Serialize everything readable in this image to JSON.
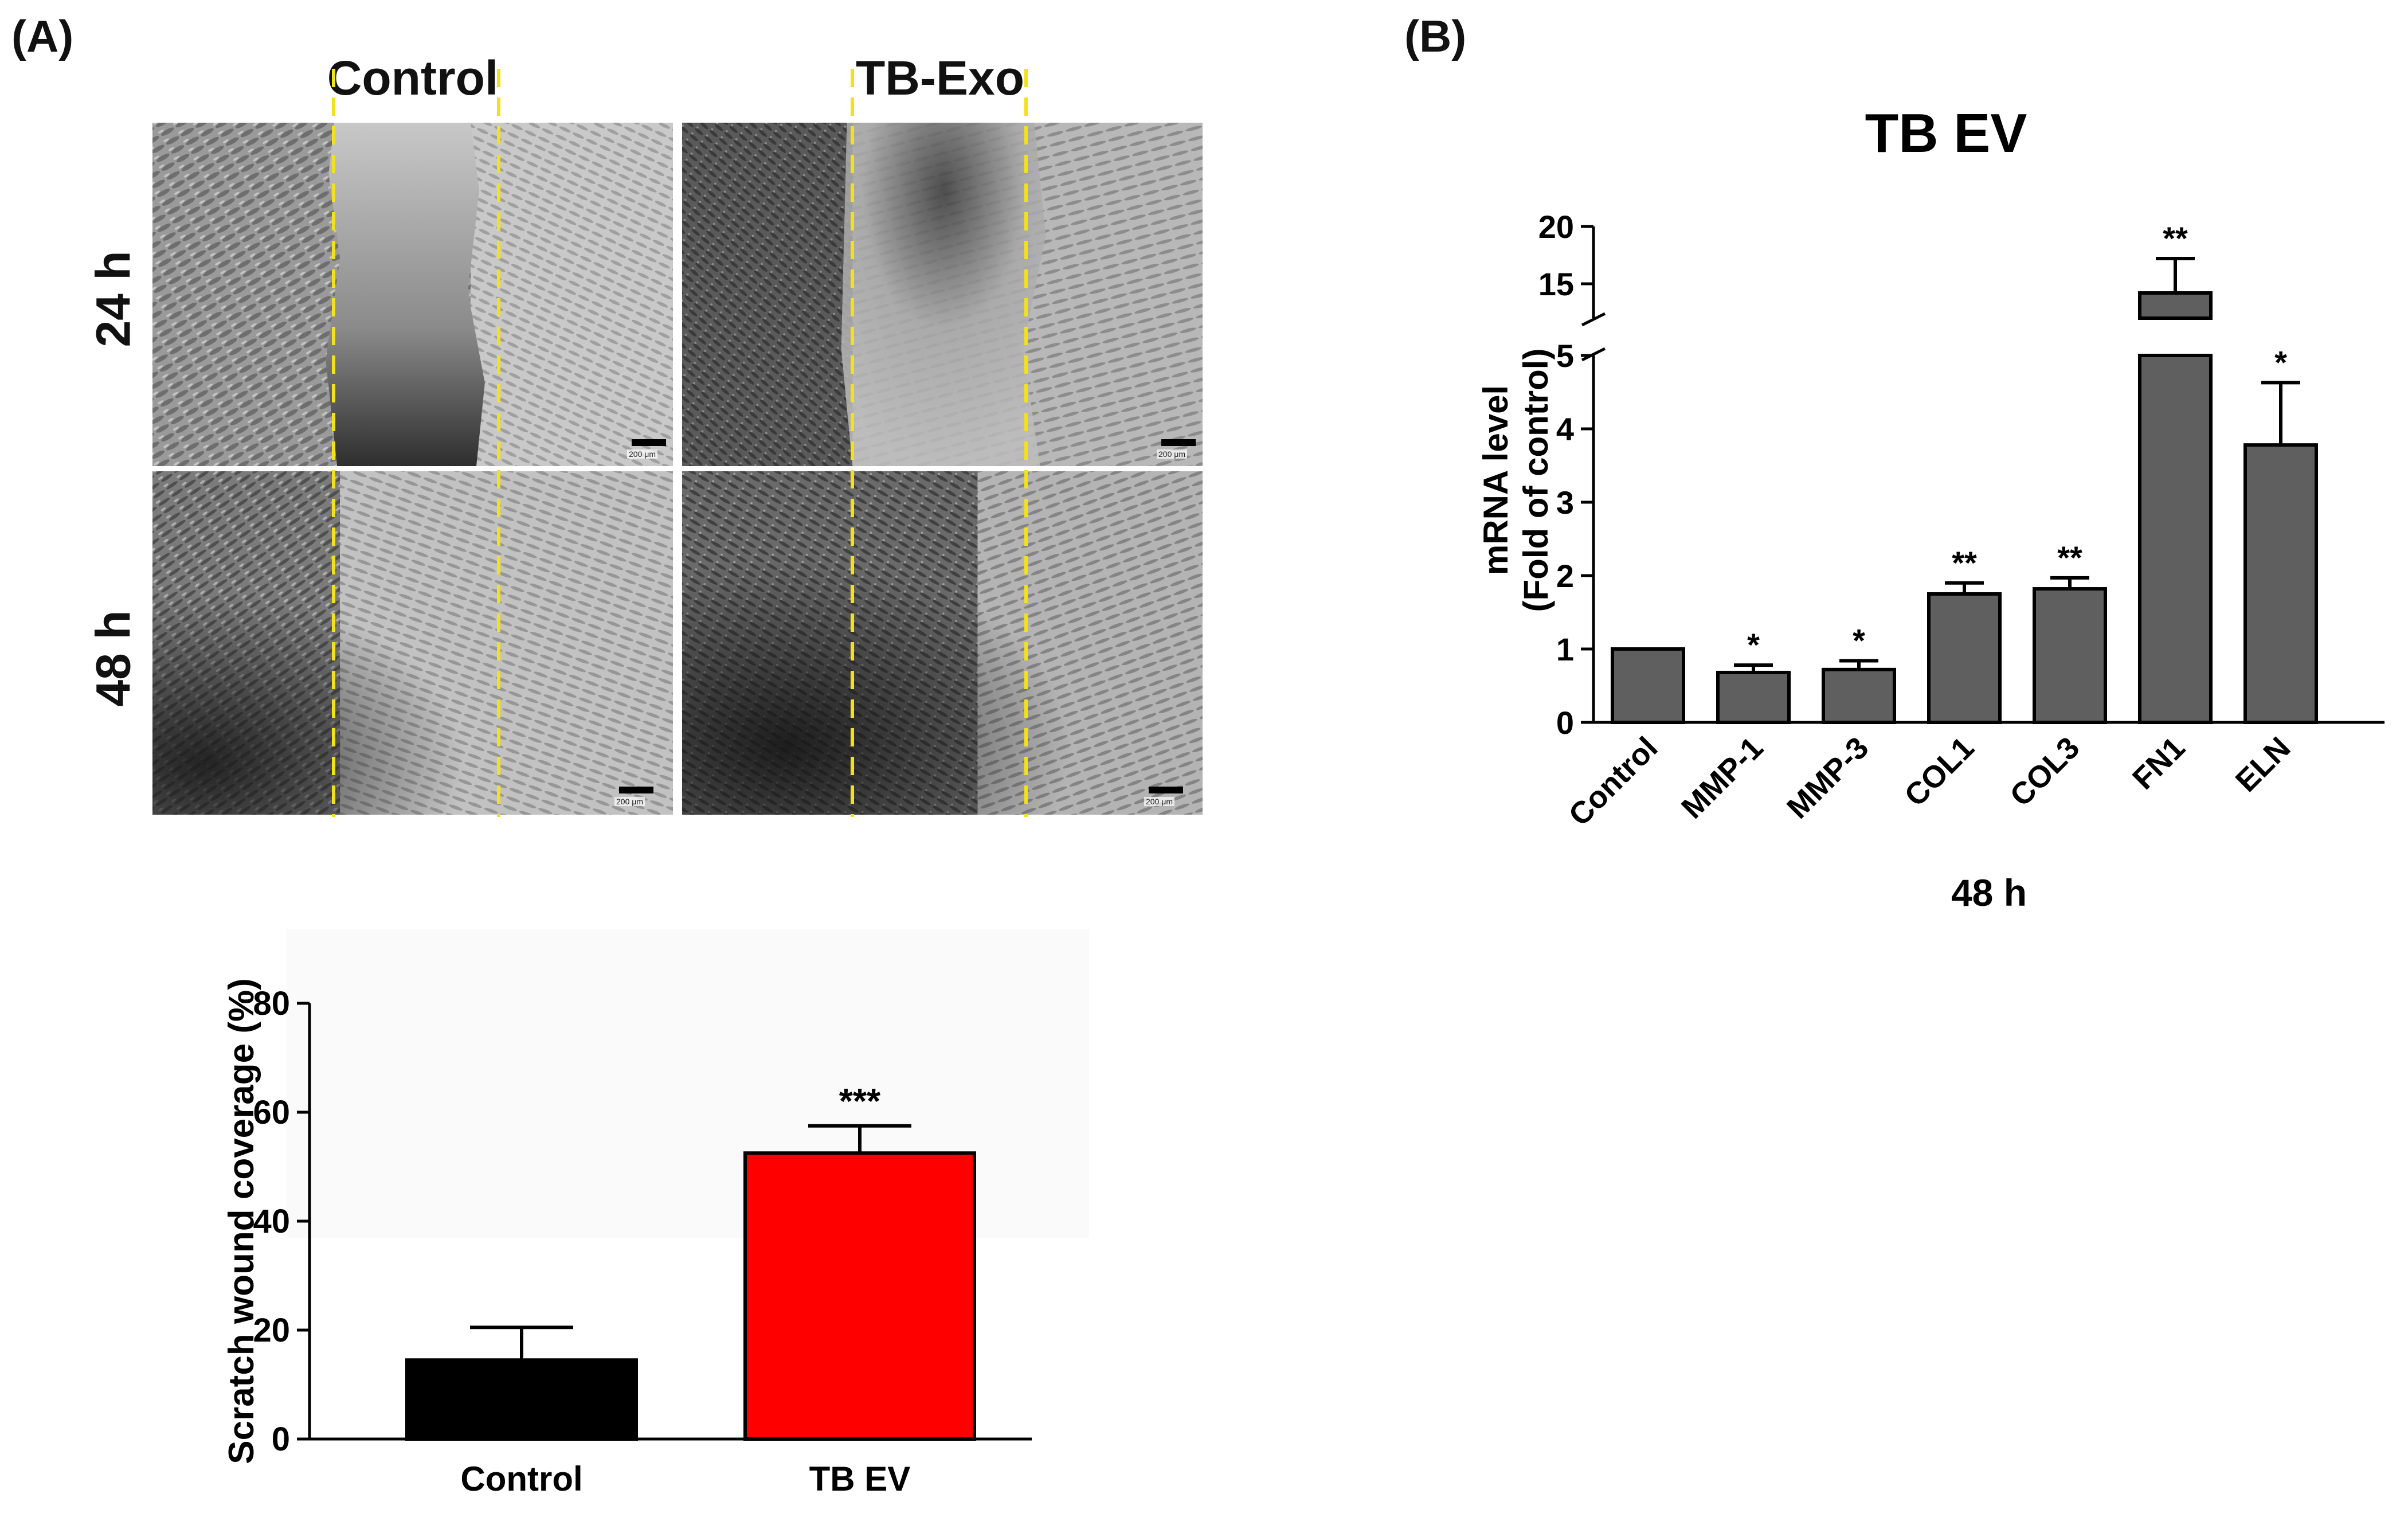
{
  "panel_a": {
    "label": "(A)",
    "columns": [
      "Control",
      "TB-Exo"
    ],
    "rows": [
      "24 h",
      "48 h"
    ],
    "scale_label": "200 μm"
  },
  "panel_b": {
    "label": "(B)"
  },
  "colors": {
    "wound_dash": "#f3e11a",
    "bar_gray": "#5f5f5f",
    "bar_black": "#000000",
    "bar_red": "#ff0000"
  },
  "chart_data": [
    {
      "type": "bar",
      "title": "",
      "ylabel": "Scratch wound coverage (%)",
      "xlabel": "",
      "categories": [
        "Control",
        "TB EV"
      ],
      "values": [
        14.5,
        52.5
      ],
      "errors": [
        6.0,
        5.0
      ],
      "significance": [
        "",
        "***"
      ],
      "bar_colors": [
        "#000000",
        "#ff0000"
      ],
      "ylim": [
        0,
        80
      ],
      "yticks": [
        0,
        20,
        40,
        60,
        80
      ],
      "grid": false
    },
    {
      "type": "bar",
      "title": "TB EV",
      "ylabel_lines": [
        "mRNA level",
        "(Fold of control)"
      ],
      "xlabel": "48 h",
      "categories": [
        "Control",
        "MMP-1",
        "MMP-3",
        "COL1",
        "COL3",
        "FN1",
        "ELN"
      ],
      "values": [
        1.0,
        0.68,
        0.72,
        1.75,
        1.82,
        14.2,
        3.78
      ],
      "errors": [
        0.0,
        0.1,
        0.12,
        0.15,
        0.15,
        3.0,
        0.85
      ],
      "significance": [
        "",
        "*",
        "*",
        "**",
        "**",
        "**",
        "*"
      ],
      "y_axis_break": true,
      "lower_range": [
        0,
        5
      ],
      "lower_ticks": [
        0,
        1,
        2,
        3,
        4,
        5
      ],
      "upper_range": [
        12,
        20
      ],
      "upper_ticks": [
        15,
        20
      ],
      "grid": false
    }
  ]
}
